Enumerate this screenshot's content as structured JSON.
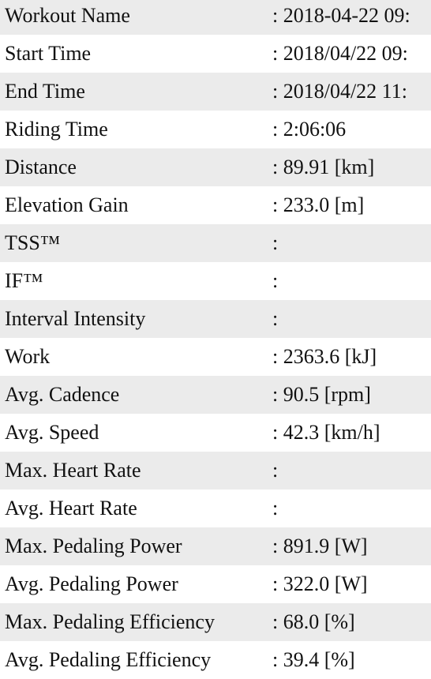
{
  "table": {
    "rows": [
      [
        "Workout Name",
        ": 2018-04-22 09:"
      ],
      [
        "Start Time",
        ": 2018/04/22 09:"
      ],
      [
        "End Time",
        ": 2018/04/22 11:"
      ],
      [
        "Riding Time",
        ": 2:06:06"
      ],
      [
        "Distance",
        ": 89.91 [km]"
      ],
      [
        "Elevation Gain",
        ": 233.0 [m]"
      ],
      [
        "TSS™",
        ":"
      ],
      [
        "IF™",
        ":"
      ],
      [
        "Interval Intensity",
        ":"
      ],
      [
        "Work",
        ": 2363.6 [kJ]"
      ],
      [
        "Avg. Cadence",
        ": 90.5 [rpm]"
      ],
      [
        "Avg. Speed",
        ": 42.3 [km/h]"
      ],
      [
        "Max. Heart Rate",
        ":"
      ],
      [
        "Avg. Heart Rate",
        ":"
      ],
      [
        "Max. Pedaling Power",
        ": 891.9 [W]"
      ],
      [
        "Avg. Pedaling Power",
        ": 322.0 [W]"
      ],
      [
        "Max. Pedaling Efficiency",
        ": 68.0 [%]"
      ],
      [
        "Avg. Pedaling Efficiency",
        ": 39.4 [%]"
      ]
    ]
  }
}
